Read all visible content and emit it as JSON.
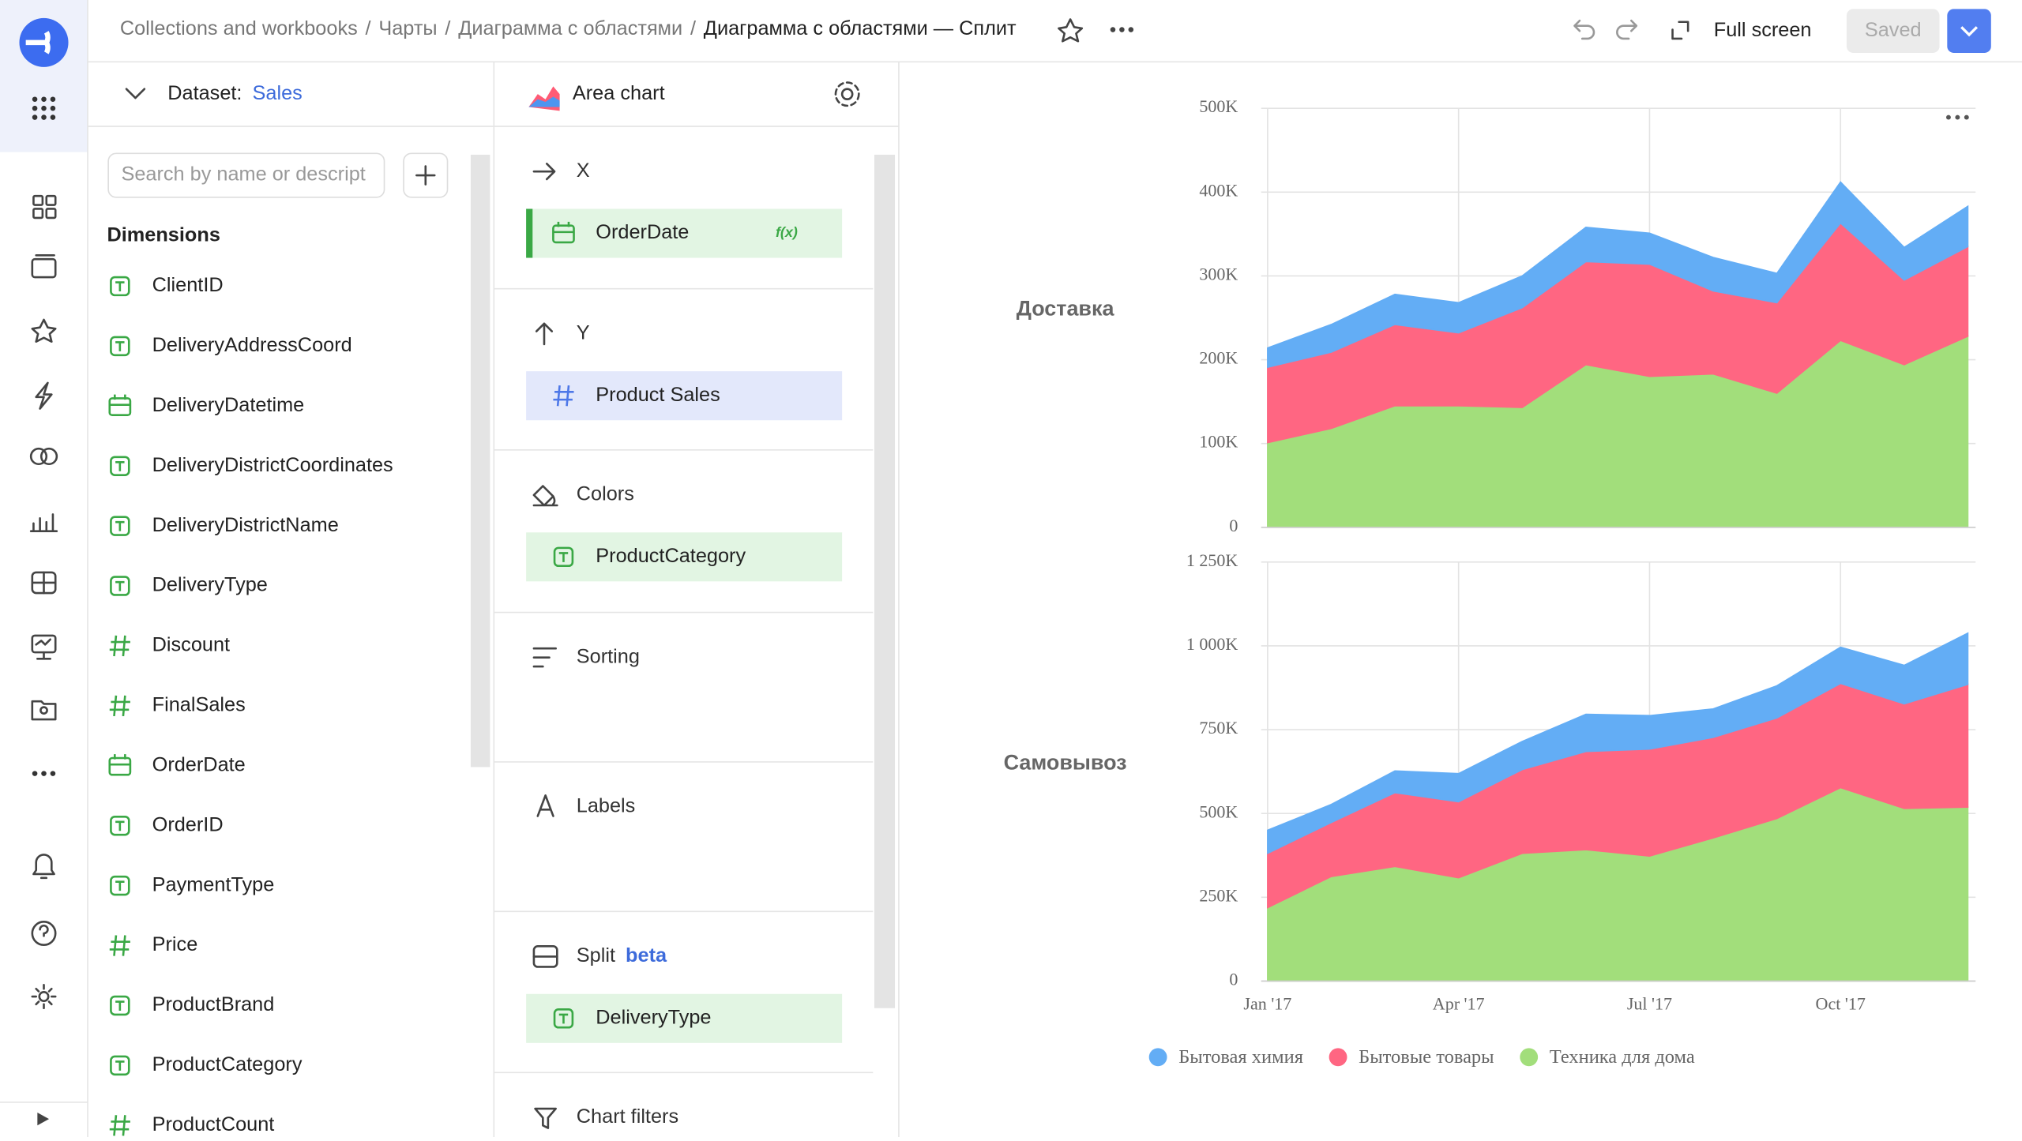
{
  "breadcrumbs": [
    "Collections and workbooks",
    "Чарты",
    "Диаграмма с областями",
    "Диаграмма с областями — Сплит"
  ],
  "breadcrumb_separator": "/",
  "toolbar": {
    "fullscreen": "Full screen",
    "saved": "Saved"
  },
  "dataset": {
    "label": "Dataset:",
    "name": "Sales",
    "search_placeholder": "Search by name or descript",
    "section_title": "Dimensions",
    "fields": [
      {
        "name": "ClientID",
        "kind": "text"
      },
      {
        "name": "DeliveryAddressCoord",
        "kind": "text"
      },
      {
        "name": "DeliveryDatetime",
        "kind": "date"
      },
      {
        "name": "DeliveryDistrictCoordinates",
        "kind": "text"
      },
      {
        "name": "DeliveryDistrictName",
        "kind": "text"
      },
      {
        "name": "DeliveryType",
        "kind": "text"
      },
      {
        "name": "Discount",
        "kind": "number"
      },
      {
        "name": "FinalSales",
        "kind": "number"
      },
      {
        "name": "OrderDate",
        "kind": "date"
      },
      {
        "name": "OrderID",
        "kind": "text"
      },
      {
        "name": "PaymentType",
        "kind": "text"
      },
      {
        "name": "Price",
        "kind": "number"
      },
      {
        "name": "ProductBrand",
        "kind": "text"
      },
      {
        "name": "ProductCategory",
        "kind": "text"
      },
      {
        "name": "ProductCount",
        "kind": "number"
      }
    ]
  },
  "wizard": {
    "chart_type": "Area chart",
    "sections": [
      {
        "title": "X",
        "items": [
          {
            "name": "OrderDate",
            "kind": "date",
            "badge": "f(x)"
          }
        ]
      },
      {
        "title": "Y",
        "items": [
          {
            "name": "Product Sales",
            "kind": "number"
          }
        ]
      },
      {
        "title": "Colors",
        "items": [
          {
            "name": "ProductCategory",
            "kind": "text"
          }
        ]
      },
      {
        "title": "Sorting",
        "items": []
      },
      {
        "title": "Labels",
        "items": []
      },
      {
        "title": "Split",
        "badge": "beta",
        "items": [
          {
            "name": "DeliveryType",
            "kind": "text"
          }
        ]
      },
      {
        "title": "Chart filters",
        "items": []
      }
    ]
  },
  "chart_data": [
    {
      "type": "area",
      "stacked": true,
      "title": "Доставка",
      "categories": [
        null,
        null,
        null,
        null,
        null,
        null,
        null,
        null,
        null,
        null,
        null,
        null
      ],
      "ylim": [
        0,
        500000
      ],
      "yticks": [
        0,
        {
          "value": 100000,
          "label": "100K"
        },
        {
          "value": 200000,
          "label": "200K"
        },
        {
          "value": 300000,
          "label": "300K"
        },
        {
          "value": 400000,
          "label": "400K"
        },
        {
          "value": 500000,
          "label": "500K"
        }
      ],
      "grid": true,
      "series": [
        {
          "name": "Бытовая химия",
          "color": "#63adf5",
          "values": [
            23000,
            33000,
            36000,
            36000,
            38000,
            41000,
            37000,
            40000,
            35000,
            49000,
            39000,
            48000
          ]
        },
        {
          "name": "Бытовые товары",
          "color": "#ff6682",
          "values": [
            90000,
            91000,
            97000,
            87000,
            119000,
            123000,
            134000,
            99000,
            108000,
            140000,
            101000,
            107000
          ]
        },
        {
          "name": "Техника для дома",
          "color": "#a2de7b",
          "values": [
            101000,
            118000,
            145000,
            145000,
            143000,
            194000,
            180000,
            183000,
            160000,
            223000,
            194000,
            228000
          ]
        }
      ]
    },
    {
      "type": "area",
      "stacked": true,
      "title": "Самовывоз",
      "categories": [
        "Jan '17",
        null,
        null,
        "Apr '17",
        null,
        null,
        "Jul '17",
        null,
        null,
        "Oct '17",
        null,
        null
      ],
      "ylim": [
        0,
        1250000
      ],
      "yticks": [
        0,
        {
          "value": 250000,
          "label": "250K"
        },
        {
          "value": 500000,
          "label": "500K"
        },
        {
          "value": 750000,
          "label": "750K"
        },
        {
          "value": 1000000,
          "label": "1 000K"
        },
        {
          "value": 1250000,
          "label": "1 250K"
        }
      ],
      "grid": true,
      "series": [
        {
          "name": "Бытовая химия",
          "color": "#63adf5",
          "values": [
            69000,
            54000,
            65000,
            84000,
            84000,
            111000,
            100000,
            85000,
            96000,
            108000,
            115000,
            153000
          ]
        },
        {
          "name": "Бытовые товары",
          "color": "#ff6682",
          "values": [
            162000,
            161000,
            220000,
            227000,
            250000,
            293000,
            319000,
            300000,
            300000,
            311000,
            312000,
            366000
          ]
        },
        {
          "name": "Техника для дома",
          "color": "#a2de7b",
          "values": [
            219000,
            312000,
            342000,
            308000,
            381000,
            392000,
            373000,
            427000,
            485000,
            577000,
            515000,
            519000
          ]
        }
      ]
    }
  ]
}
